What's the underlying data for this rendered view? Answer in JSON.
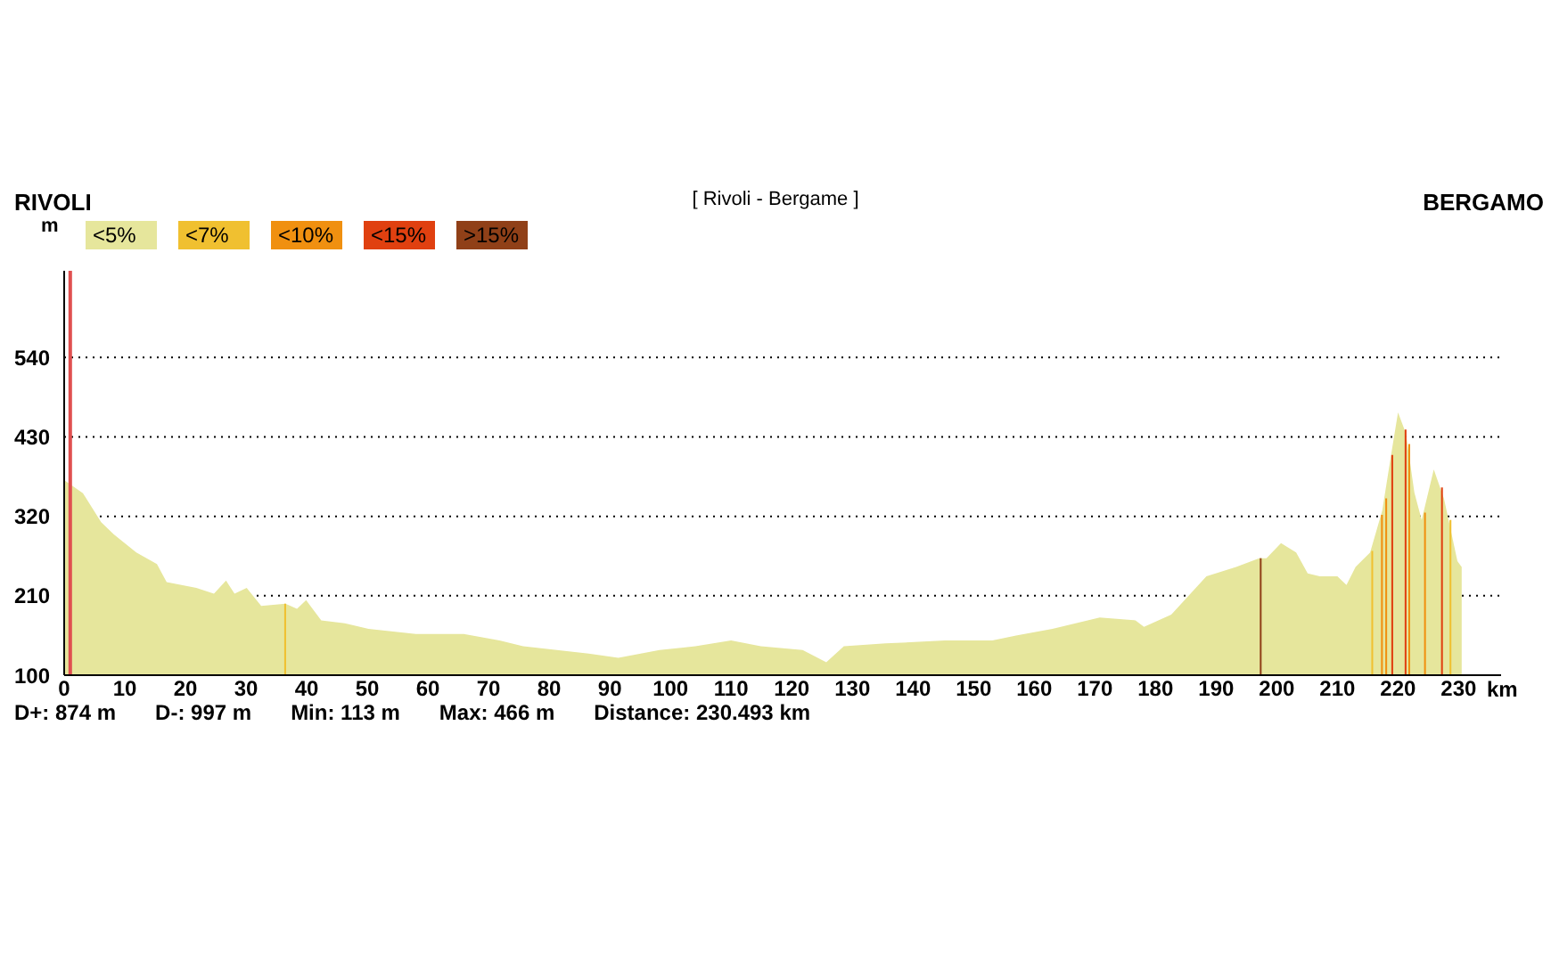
{
  "chart_data": {
    "type": "area",
    "title": "[ Rivoli - Bergame ]",
    "xlabel": "km",
    "ylabel": "m",
    "annotations": [
      "RIVOLI",
      "BERGAMO",
      "D+: 874 m",
      "D-: 997 m",
      "Min: 113 m",
      "Max: 466 m",
      "Distance: 230.493 km"
    ],
    "xlim": [
      0,
      237
    ],
    "xticks": [
      0,
      10,
      20,
      30,
      40,
      50,
      60,
      70,
      80,
      90,
      100,
      110,
      120,
      130,
      140,
      150,
      160,
      170,
      180,
      190,
      200,
      210,
      220,
      230
    ],
    "ylim": [
      100,
      660
    ],
    "yticks": [
      100,
      210,
      320,
      430,
      540
    ],
    "grid": "y",
    "legend": "top left",
    "ref_lines": [
      {
        "axis": "x",
        "value": 1,
        "color": "#e05050"
      }
    ],
    "series": [
      {
        "name": "<5%",
        "color": "#e6e69c",
        "x": [
          0,
          3.1,
          6.1,
          8.2,
          11.9,
          15.3,
          16.9,
          21.8,
          24.7,
          26.7,
          28.1,
          30.1,
          32.5,
          36.5,
          38.4,
          39.9,
          42.4,
          46.3,
          50.2,
          58,
          65.9,
          71.8,
          75.7,
          86.5,
          91.4,
          98.2,
          104.1,
          110,
          114.9,
          121.8,
          125.7,
          128.6,
          135.5,
          145.3,
          153.1,
          157,
          163,
          170.8,
          176.7,
          178.1,
          182.6,
          188.4,
          193.3,
          197.1,
          198.3,
          200.7,
          203.2,
          205.1,
          207.1,
          210,
          211.5,
          213,
          215.4,
          217.4,
          218.8,
          220,
          221.3,
          222.7,
          223.9,
          225.9,
          227.6,
          229.8,
          230.5
        ],
        "values": [
          370,
          352,
          312,
          295,
          270,
          254,
          229,
          221,
          213,
          231,
          213,
          221,
          196,
          199,
          192,
          204,
          176,
          172,
          164,
          157,
          157,
          148,
          140,
          130,
          124,
          135,
          140,
          148,
          140,
          135,
          118,
          140,
          144,
          148,
          148,
          155,
          164,
          180,
          176,
          167,
          184,
          237,
          250,
          262,
          262,
          283,
          270,
          241,
          237,
          237,
          225,
          250,
          270,
          328,
          402,
          464,
          435,
          353,
          315,
          385,
          344,
          258,
          250
        ]
      },
      {
        "name": "<7%",
        "color": "#f0c030",
        "x": [
          36.3,
          36.6,
          36.7,
          215.6,
          215.9,
          216,
          228.5,
          228.8
        ],
        "values": [
          199,
          199,
          null,
          272,
          272,
          null,
          315,
          315
        ]
      },
      {
        "name": "<10%",
        "color": "#f09010",
        "x": [
          217.2,
          217.5,
          217.6,
          217.9,
          218.2,
          218.3,
          221.7,
          222,
          222.1,
          224.3,
          224.6
        ],
        "values": [
          322,
          322,
          null,
          345,
          345,
          null,
          420,
          420,
          null,
          325,
          325
        ]
      },
      {
        "name": "<15%",
        "color": "#e04010",
        "x": [
          218.9,
          219.2,
          219.3,
          221.1,
          221.4,
          221.5,
          227.1,
          227.4
        ],
        "values": [
          405,
          405,
          null,
          440,
          440,
          null,
          360,
          360
        ]
      },
      {
        "name": ">15%",
        "color": "#904018",
        "x": [
          197.2,
          197.5
        ],
        "values": [
          262,
          262
        ]
      }
    ]
  }
}
